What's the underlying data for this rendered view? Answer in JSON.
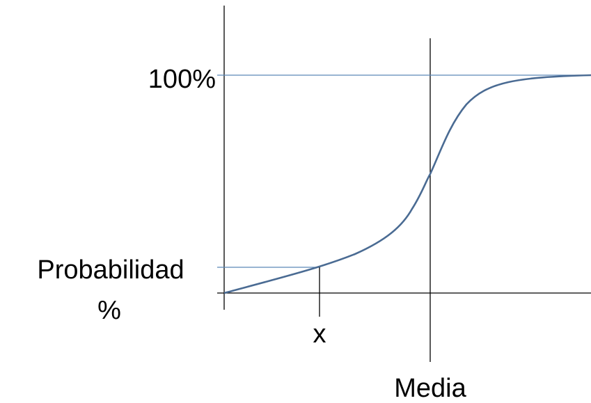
{
  "diagram": {
    "labels": {
      "hundred_percent": "100%",
      "probability_line1": "Probabilidad",
      "probability_line2": "%",
      "x_marker": "x",
      "mean_marker": "Media"
    },
    "colors": {
      "curve": "#4a6b93",
      "guide_lines": "#5b87b8",
      "axes": "#000000"
    }
  }
}
